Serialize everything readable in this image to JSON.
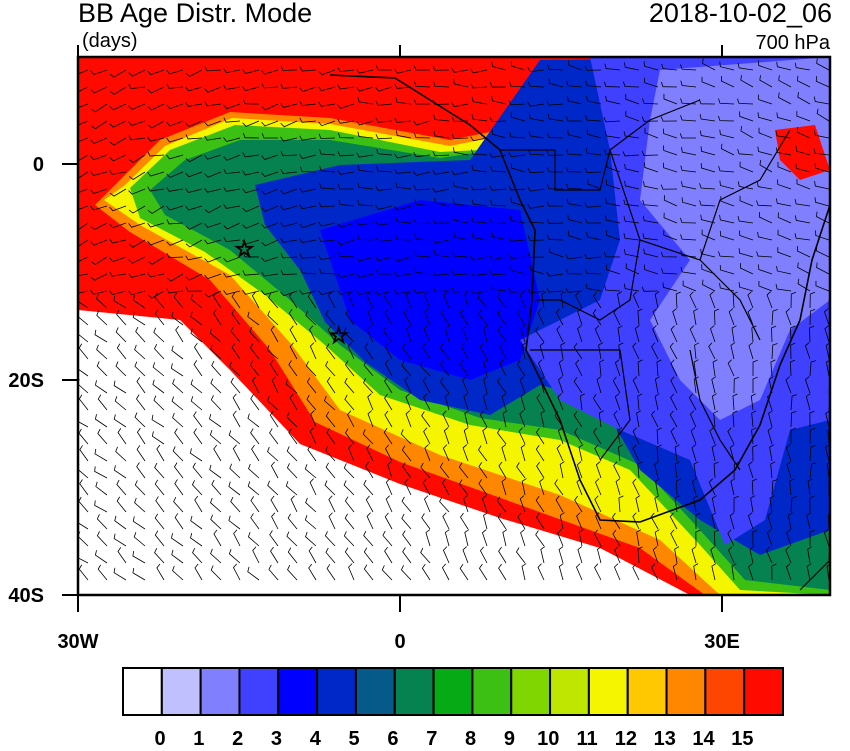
{
  "title": "BB Age Distr. Mode",
  "units": "(days)",
  "date": "2018-10-02_06",
  "level": "700 hPa",
  "axes": {
    "lat_labels": [
      "0",
      "20S",
      "40S"
    ],
    "lon_labels": [
      "30W",
      "0",
      "30E"
    ],
    "lon_range": [
      -30,
      40
    ],
    "lat_range": [
      -40,
      10
    ]
  },
  "colorbar": {
    "labels": [
      "0",
      "1",
      "2",
      "3",
      "4",
      "5",
      "6",
      "7",
      "8",
      "9",
      "10",
      "11",
      "12",
      "13",
      "14",
      "15"
    ],
    "colors": [
      "#ffffff",
      "#c0c0ff",
      "#8080ff",
      "#4040ff",
      "#0000ff",
      "#0028c8",
      "#055a8a",
      "#058250",
      "#05aa14",
      "#3cc014",
      "#80d600",
      "#bee600",
      "#f5f500",
      "#ffc800",
      "#ff8700",
      "#ff4600",
      "#ff0a00"
    ]
  },
  "markers": [
    {
      "type": "star",
      "lon": -14.5,
      "lat": -7.9
    },
    {
      "type": "star",
      "lon": -5.7,
      "lat": -15.9
    }
  ]
}
